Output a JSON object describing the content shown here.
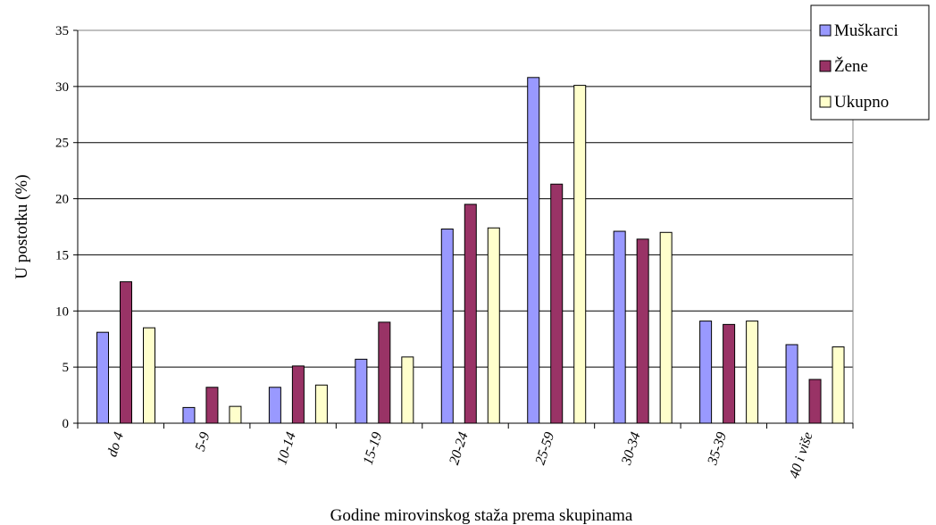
{
  "chart_data": {
    "type": "bar",
    "title": "",
    "xlabel": "Godine mirovinskog staža prema skupinama",
    "ylabel": "U postotku (%)",
    "ylim": [
      0,
      35
    ],
    "yticks": [
      0,
      5,
      10,
      15,
      20,
      25,
      30,
      35
    ],
    "grid": true,
    "legend_position": "top-right",
    "categories": [
      "do 4",
      "5-9",
      "10-14",
      "15-19",
      "20-24",
      "25-59",
      "30-34",
      "35-39",
      "40 i više"
    ],
    "series": [
      {
        "name": "Muškarci",
        "color": "#9999FF",
        "values": [
          8.1,
          1.4,
          3.2,
          5.7,
          17.3,
          30.8,
          17.1,
          9.1,
          7.0
        ]
      },
      {
        "name": "Žene",
        "color": "#993366",
        "values": [
          12.6,
          3.2,
          5.1,
          9.0,
          19.5,
          21.3,
          16.4,
          8.8,
          3.9
        ]
      },
      {
        "name": "Ukupno",
        "color": "#FFFFCC",
        "values": [
          8.5,
          1.5,
          3.4,
          5.9,
          17.4,
          30.1,
          17.0,
          9.1,
          6.8
        ]
      }
    ]
  }
}
